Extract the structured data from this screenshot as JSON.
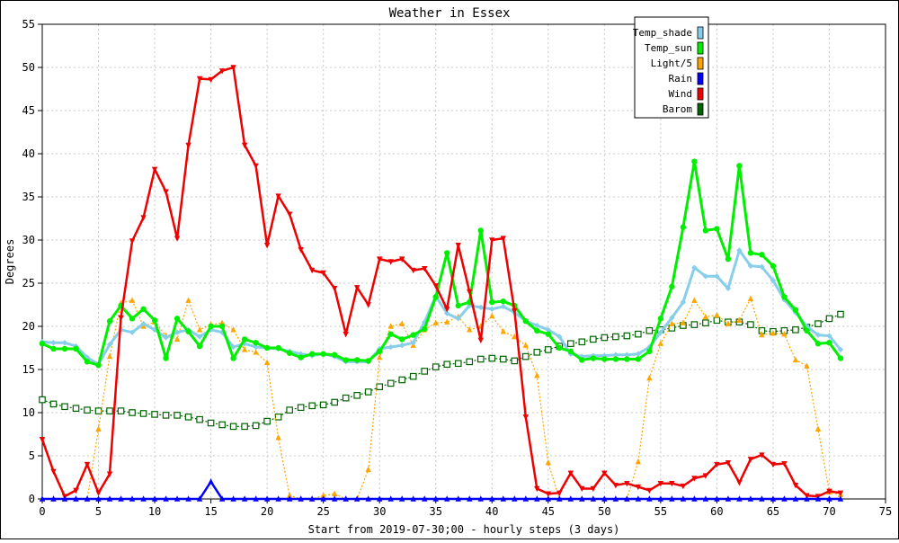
{
  "chart_data": {
    "type": "line",
    "title": "Weather in Essex",
    "xlabel": "Start from 2019-07-30;00 - hourly steps (3 days)",
    "ylabel": "Degrees",
    "xlim": [
      0,
      75
    ],
    "ylim": [
      0,
      55
    ],
    "x_ticks": [
      0,
      5,
      10,
      15,
      20,
      25,
      30,
      35,
      40,
      45,
      50,
      55,
      60,
      65,
      70,
      75
    ],
    "y_ticks": [
      0,
      5,
      10,
      15,
      20,
      25,
      30,
      35,
      40,
      45,
      50,
      55
    ],
    "grid": true,
    "legend_position": "top-right",
    "series": [
      {
        "name": "Temp_shade",
        "color": "#87ceeb",
        "marker": "diamond",
        "x": [
          0,
          1,
          2,
          3,
          4,
          5,
          6,
          7,
          8,
          9,
          10,
          11,
          12,
          13,
          14,
          15,
          16,
          17,
          18,
          19,
          20,
          21,
          22,
          23,
          24,
          25,
          26,
          27,
          28,
          29,
          30,
          31,
          32,
          33,
          34,
          35,
          36,
          37,
          38,
          39,
          40,
          41,
          42,
          43,
          44,
          45,
          46,
          47,
          48,
          49,
          50,
          51,
          52,
          53,
          54,
          55,
          56,
          57,
          58,
          59,
          60,
          61,
          62,
          63,
          64,
          65,
          66,
          67,
          68,
          69,
          70,
          71
        ],
        "values": [
          18.2,
          18.1,
          18.1,
          17.7,
          16.4,
          15.6,
          17.9,
          19.6,
          19.3,
          20.3,
          19.6,
          18.7,
          19.3,
          19.6,
          18.8,
          19.6,
          19.3,
          17.6,
          18.0,
          17.6,
          17.5,
          17.4,
          17.1,
          16.8,
          16.6,
          16.8,
          16.5,
          15.9,
          15.9,
          15.9,
          17.4,
          17.6,
          17.8,
          18.1,
          20.5,
          23.5,
          21.5,
          20.9,
          22.4,
          22.2,
          22.0,
          22.3,
          21.6,
          20.6,
          20.1,
          19.6,
          18.8,
          16.8,
          16.5,
          16.6,
          16.6,
          16.7,
          16.7,
          16.8,
          17.6,
          19.3,
          21.0,
          22.8,
          26.8,
          25.8,
          25.8,
          24.4,
          28.8,
          27.0,
          26.9,
          25.3,
          23.1,
          21.6,
          20.0,
          19.0,
          18.9,
          17.3
        ]
      },
      {
        "name": "Temp_sun",
        "color": "#00ee00",
        "marker": "circle",
        "x": [
          0,
          1,
          2,
          3,
          4,
          5,
          6,
          7,
          8,
          9,
          10,
          11,
          12,
          13,
          14,
          15,
          16,
          17,
          18,
          19,
          20,
          21,
          22,
          23,
          24,
          25,
          26,
          27,
          28,
          29,
          30,
          31,
          32,
          33,
          34,
          35,
          36,
          37,
          38,
          39,
          40,
          41,
          42,
          43,
          44,
          45,
          46,
          47,
          48,
          49,
          50,
          51,
          52,
          53,
          54,
          55,
          56,
          57,
          58,
          59,
          60,
          61,
          62,
          63,
          64,
          65,
          66,
          67,
          68,
          69,
          70,
          71
        ],
        "values": [
          18.0,
          17.4,
          17.4,
          17.4,
          15.9,
          15.5,
          20.6,
          22.4,
          20.9,
          22.0,
          20.7,
          16.3,
          20.9,
          19.4,
          17.7,
          20.0,
          20.0,
          16.3,
          18.5,
          18.1,
          17.5,
          17.5,
          16.9,
          16.4,
          16.8,
          16.8,
          16.7,
          16.1,
          16.1,
          16.0,
          17.1,
          19.1,
          18.5,
          19.0,
          19.7,
          23.4,
          28.5,
          22.4,
          22.8,
          31.1,
          22.8,
          22.9,
          22.4,
          20.6,
          19.5,
          19.1,
          17.5,
          17.1,
          16.1,
          16.3,
          16.2,
          16.2,
          16.2,
          16.2,
          17.1,
          20.9,
          24.6,
          31.5,
          39.1,
          31.1,
          31.3,
          27.8,
          38.6,
          28.5,
          28.3,
          27.0,
          23.4,
          21.9,
          19.5,
          18.0,
          18.1,
          16.3
        ]
      },
      {
        "name": "Light/5",
        "color": "#ffa500",
        "marker": "triangle-up",
        "x": [
          0,
          1,
          2,
          3,
          4,
          5,
          6,
          7,
          8,
          9,
          10,
          11,
          12,
          13,
          14,
          15,
          16,
          17,
          18,
          19,
          20,
          21,
          22,
          23,
          24,
          25,
          26,
          27,
          28,
          29,
          30,
          31,
          32,
          33,
          34,
          35,
          36,
          37,
          38,
          39,
          40,
          41,
          42,
          43,
          44,
          45,
          46,
          47,
          48,
          49,
          50,
          51,
          52,
          53,
          54,
          55,
          56,
          57,
          58,
          59,
          60,
          61,
          62,
          63,
          64,
          65,
          66,
          67,
          68,
          69,
          70,
          71
        ],
        "values": [
          0,
          0,
          0,
          0,
          0,
          8.1,
          16.5,
          22.7,
          23.0,
          20.0,
          20.5,
          18.9,
          18.5,
          23.0,
          19.6,
          20.2,
          20.4,
          19.6,
          17.3,
          17.0,
          15.8,
          7.1,
          0.4,
          0,
          0,
          0.4,
          0.6,
          0,
          0,
          3.4,
          16.4,
          20.0,
          20.3,
          17.8,
          19.6,
          20.4,
          20.5,
          21.1,
          19.6,
          20.0,
          21.2,
          19.4,
          18.8,
          17.8,
          14.3,
          4.2,
          0,
          0,
          0,
          0,
          0,
          0,
          0,
          4.3,
          14.0,
          18.0,
          20.3,
          20.4,
          23.0,
          21.1,
          21.3,
          20.3,
          20.7,
          23.2,
          19.0,
          19.2,
          19.1,
          16.1,
          15.4,
          8.1,
          0.8,
          0.5
        ]
      },
      {
        "name": "Rain",
        "color": "#0000ff",
        "marker": "triangle-up",
        "x": [
          0,
          1,
          2,
          3,
          4,
          5,
          6,
          7,
          8,
          9,
          10,
          11,
          12,
          13,
          14,
          15,
          16,
          17,
          18,
          19,
          20,
          21,
          22,
          23,
          24,
          25,
          26,
          27,
          28,
          29,
          30,
          31,
          32,
          33,
          34,
          35,
          36,
          37,
          38,
          39,
          40,
          41,
          42,
          43,
          44,
          45,
          46,
          47,
          48,
          49,
          50,
          51,
          52,
          53,
          54,
          55,
          56,
          57,
          58,
          59,
          60,
          61,
          62,
          63,
          64,
          65,
          66,
          67,
          68,
          69,
          70,
          71
        ],
        "values": [
          0,
          0,
          0,
          0,
          0,
          0,
          0,
          0,
          0,
          0,
          0,
          0,
          0,
          0,
          0,
          2,
          0,
          0,
          0,
          0,
          0,
          0,
          0,
          0,
          0,
          0,
          0,
          0,
          0,
          0,
          0,
          0,
          0,
          0,
          0,
          0,
          0,
          0,
          0,
          0,
          0,
          0,
          0,
          0,
          0,
          0,
          0,
          0,
          0,
          0,
          0,
          0,
          0,
          0,
          0,
          0,
          0,
          0,
          0,
          0,
          0,
          0,
          0,
          0,
          0,
          0,
          0,
          0,
          0,
          0,
          0,
          0
        ]
      },
      {
        "name": "Wind",
        "color": "#ee0000",
        "marker": "triangle-down",
        "x": [
          0,
          1,
          2,
          3,
          4,
          5,
          6,
          7,
          8,
          9,
          10,
          11,
          12,
          13,
          14,
          15,
          16,
          17,
          18,
          19,
          20,
          21,
          22,
          23,
          24,
          25,
          26,
          27,
          28,
          29,
          30,
          31,
          32,
          33,
          34,
          35,
          36,
          37,
          38,
          39,
          40,
          41,
          42,
          43,
          44,
          45,
          46,
          47,
          48,
          49,
          50,
          51,
          52,
          53,
          54,
          55,
          56,
          57,
          58,
          59,
          60,
          61,
          62,
          63,
          64,
          65,
          66,
          67,
          68,
          69,
          70,
          71
        ],
        "values": [
          6.9,
          3.2,
          0.3,
          1.0,
          4.0,
          0.7,
          2.9,
          21.0,
          29.9,
          32.6,
          38.2,
          35.6,
          30.2,
          41.0,
          48.7,
          48.6,
          49.6,
          50.0,
          41.0,
          38.6,
          29.4,
          35.1,
          33.0,
          28.9,
          26.5,
          26.2,
          24.4,
          19.1,
          24.5,
          22.5,
          27.8,
          27.5,
          27.8,
          26.5,
          26.7,
          24.7,
          22.0,
          29.4,
          24.0,
          18.4,
          30.0,
          30.2,
          21.8,
          9.5,
          1.2,
          0.6,
          0.7,
          3.0,
          1.2,
          1.2,
          3.0,
          1.6,
          1.8,
          1.4,
          1.0,
          1.8,
          1.8,
          1.5,
          2.4,
          2.7,
          4.0,
          4.2,
          1.9,
          4.6,
          5.1,
          4.0,
          4.1,
          1.6,
          0.4,
          0.3,
          0.9,
          0.7
        ]
      },
      {
        "name": "Barom",
        "color": "#006400",
        "marker": "square",
        "x": [
          0,
          1,
          2,
          3,
          4,
          5,
          6,
          7,
          8,
          9,
          10,
          11,
          12,
          13,
          14,
          15,
          16,
          17,
          18,
          19,
          20,
          21,
          22,
          23,
          24,
          25,
          26,
          27,
          28,
          29,
          30,
          31,
          32,
          33,
          34,
          35,
          36,
          37,
          38,
          39,
          40,
          41,
          42,
          43,
          44,
          45,
          46,
          47,
          48,
          49,
          50,
          51,
          52,
          53,
          54,
          55,
          56,
          57,
          58,
          59,
          60,
          61,
          62,
          63,
          64,
          65,
          66,
          67,
          68,
          69,
          70,
          71
        ],
        "values": [
          11.5,
          11.0,
          10.7,
          10.5,
          10.3,
          10.2,
          10.2,
          10.2,
          10.0,
          9.9,
          9.8,
          9.7,
          9.7,
          9.5,
          9.2,
          8.8,
          8.6,
          8.4,
          8.4,
          8.5,
          9.0,
          9.5,
          10.3,
          10.6,
          10.8,
          10.9,
          11.2,
          11.7,
          12.0,
          12.4,
          13.0,
          13.4,
          13.8,
          14.2,
          14.8,
          15.3,
          15.6,
          15.7,
          15.9,
          16.2,
          16.3,
          16.2,
          16.0,
          16.5,
          17.0,
          17.3,
          17.7,
          18.0,
          18.2,
          18.5,
          18.7,
          18.8,
          18.9,
          19.1,
          19.5,
          19.6,
          19.8,
          20.1,
          20.2,
          20.4,
          20.7,
          20.5,
          20.5,
          20.2,
          19.5,
          19.4,
          19.5,
          19.6,
          19.9,
          20.3,
          20.9,
          21.4
        ]
      }
    ]
  }
}
